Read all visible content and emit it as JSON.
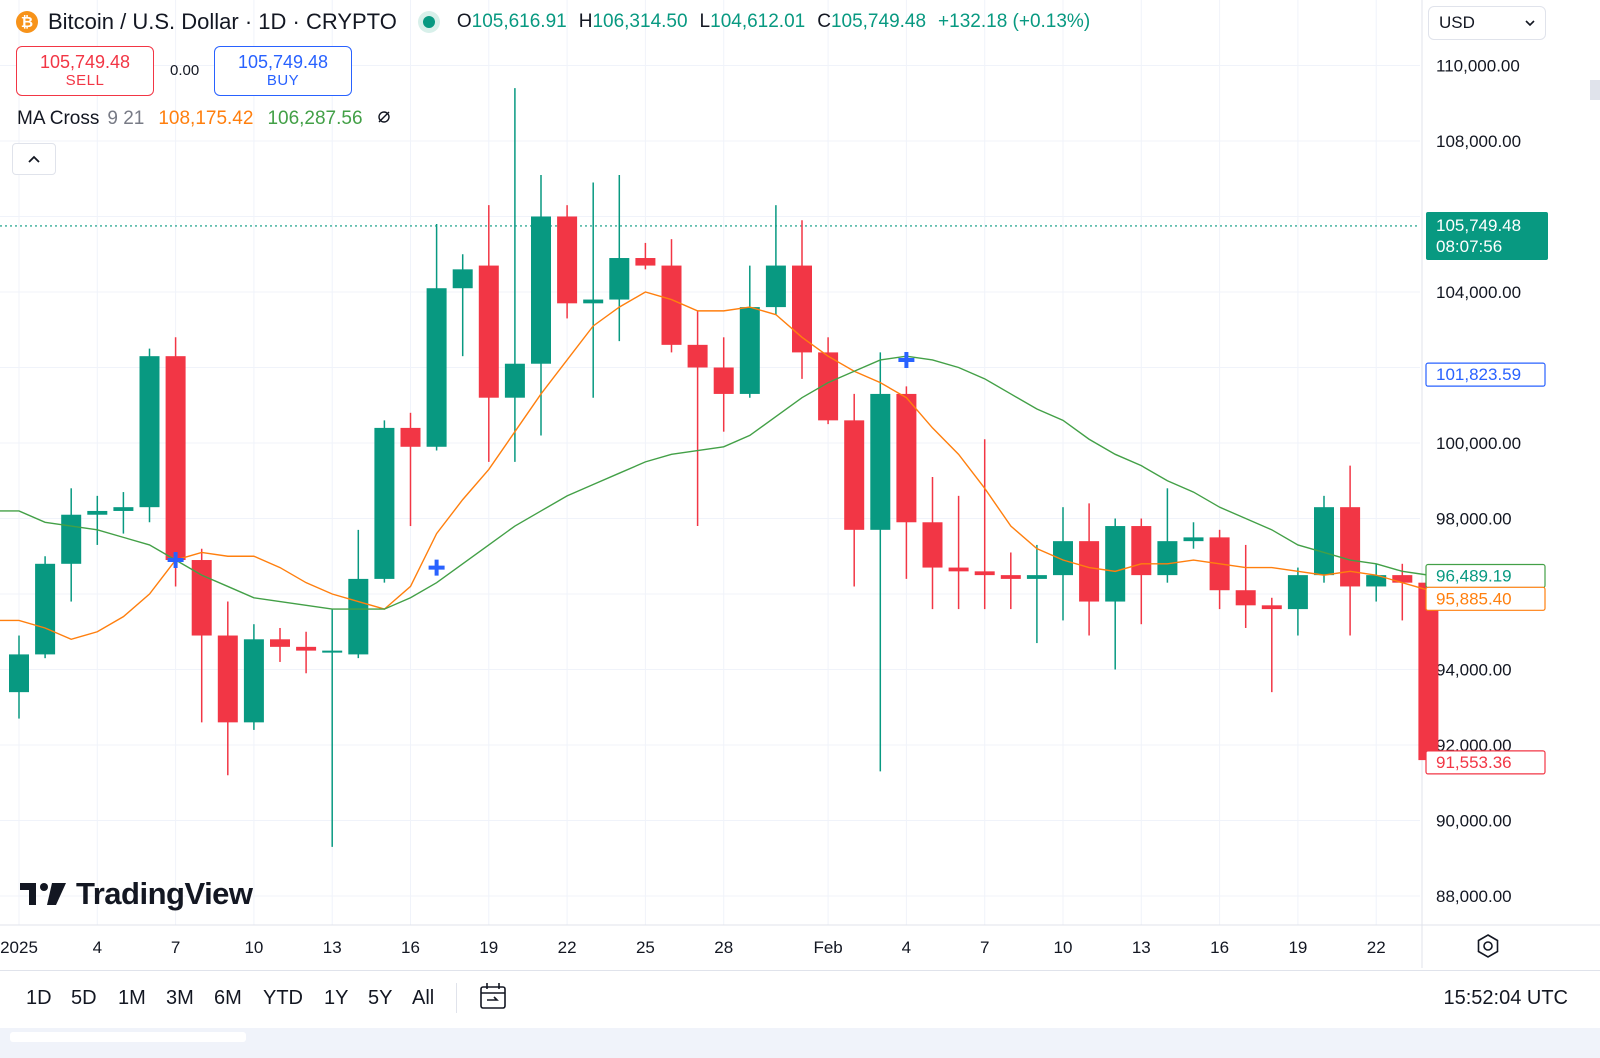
{
  "header": {
    "coin_glyph": "₿",
    "title": "Bitcoin / U.S. Dollar · 1D · CRYPTO",
    "ohlc": {
      "o_label": "O",
      "o": "105,616.91",
      "h_label": "H",
      "h": "106,314.50",
      "l_label": "L",
      "l": "104,612.01",
      "c_label": "C",
      "c": "105,749.48",
      "change": "+132.18 (+0.13%)"
    }
  },
  "trade": {
    "sell_price": "105,749.48",
    "sell_label": "SELL",
    "spread": "0.00",
    "buy_price": "105,749.48",
    "buy_label": "BUY"
  },
  "indicator": {
    "name": "MA Cross",
    "params": "9 21",
    "fast_value": "108,175.42",
    "slow_value": "106,287.56",
    "visibility_icon": "eye-off-icon"
  },
  "currency": {
    "selected": "USD"
  },
  "brand": {
    "name": "TradingView"
  },
  "range_buttons": [
    "1D",
    "5D",
    "1M",
    "3M",
    "6M",
    "YTD",
    "1Y",
    "5Y",
    "All"
  ],
  "clock": "15:52:04 UTC",
  "colors": {
    "up": "#089981",
    "down": "#f23645",
    "ma_fast": "#ff7f0e",
    "ma_slow": "#43a047",
    "cross_marker": "#2962ff",
    "last_price_tag": "#089981"
  },
  "chart_data": {
    "type": "candlestick",
    "title": "Bitcoin / U.S. Dollar · 1D · CRYPTO",
    "ylim": [
      87500,
      111000
    ],
    "y_ticks": [
      {
        "value": 88000,
        "label": "88,000.00"
      },
      {
        "value": 90000,
        "label": "90,000.00"
      },
      {
        "value": 92000,
        "label": "92,000.00"
      },
      {
        "value": 94000,
        "label": "94,000.00"
      },
      {
        "value": 98000,
        "label": "98,000.00"
      },
      {
        "value": 100000,
        "label": "100,000.00"
      },
      {
        "value": 104000,
        "label": "104,000.00"
      },
      {
        "value": 108000,
        "label": "108,000.00"
      },
      {
        "value": 110000,
        "label": "110,000.00"
      }
    ],
    "x_ticks": [
      {
        "index": 0,
        "label": "2025"
      },
      {
        "index": 3,
        "label": "4"
      },
      {
        "index": 6,
        "label": "7"
      },
      {
        "index": 9,
        "label": "10"
      },
      {
        "index": 12,
        "label": "13"
      },
      {
        "index": 15,
        "label": "16"
      },
      {
        "index": 18,
        "label": "19"
      },
      {
        "index": 21,
        "label": "22"
      },
      {
        "index": 24,
        "label": "25"
      },
      {
        "index": 27,
        "label": "28"
      },
      {
        "index": 31,
        "label": "Feb"
      },
      {
        "index": 34,
        "label": "4"
      },
      {
        "index": 37,
        "label": "7"
      },
      {
        "index": 40,
        "label": "10"
      },
      {
        "index": 43,
        "label": "13"
      },
      {
        "index": 46,
        "label": "16"
      },
      {
        "index": 49,
        "label": "19"
      },
      {
        "index": 52,
        "label": "22"
      }
    ],
    "candles": [
      {
        "o": 93400,
        "h": 94900,
        "l": 92700,
        "c": 94400
      },
      {
        "o": 94400,
        "h": 97000,
        "l": 94300,
        "c": 96800
      },
      {
        "o": 96800,
        "h": 98800,
        "l": 95800,
        "c": 98100
      },
      {
        "o": 98100,
        "h": 98600,
        "l": 97300,
        "c": 98200
      },
      {
        "o": 98200,
        "h": 98700,
        "l": 97600,
        "c": 98300
      },
      {
        "o": 98300,
        "h": 102500,
        "l": 97900,
        "c": 102300
      },
      {
        "o": 102300,
        "h": 102800,
        "l": 96200,
        "c": 96900
      },
      {
        "o": 96900,
        "h": 97200,
        "l": 92600,
        "c": 94900
      },
      {
        "o": 94900,
        "h": 95800,
        "l": 91200,
        "c": 92600
      },
      {
        "o": 92600,
        "h": 95200,
        "l": 92400,
        "c": 94800
      },
      {
        "o": 94800,
        "h": 95100,
        "l": 94200,
        "c": 94600
      },
      {
        "o": 94600,
        "h": 95000,
        "l": 93900,
        "c": 94500
      },
      {
        "o": 94500,
        "h": 95600,
        "l": 89300,
        "c": 94500
      },
      {
        "o": 94400,
        "h": 97700,
        "l": 94300,
        "c": 96400
      },
      {
        "o": 96400,
        "h": 100600,
        "l": 96300,
        "c": 100400
      },
      {
        "o": 100400,
        "h": 100800,
        "l": 97800,
        "c": 99900
      },
      {
        "o": 99900,
        "h": 105800,
        "l": 99800,
        "c": 104100
      },
      {
        "o": 104100,
        "h": 105000,
        "l": 102300,
        "c": 104600
      },
      {
        "o": 104700,
        "h": 106300,
        "l": 99500,
        "c": 101200
      },
      {
        "o": 101200,
        "h": 109400,
        "l": 99500,
        "c": 102100
      },
      {
        "o": 102100,
        "h": 107100,
        "l": 100200,
        "c": 106000
      },
      {
        "o": 106000,
        "h": 106300,
        "l": 103300,
        "c": 103700
      },
      {
        "o": 103700,
        "h": 106900,
        "l": 101200,
        "c": 103800
      },
      {
        "o": 103800,
        "h": 107100,
        "l": 102700,
        "c": 104900
      },
      {
        "o": 104900,
        "h": 105300,
        "l": 104600,
        "c": 104700
      },
      {
        "o": 104700,
        "h": 105400,
        "l": 102400,
        "c": 102600
      },
      {
        "o": 102600,
        "h": 103500,
        "l": 97800,
        "c": 102000
      },
      {
        "o": 102000,
        "h": 102800,
        "l": 100300,
        "c": 101300
      },
      {
        "o": 101300,
        "h": 104700,
        "l": 101200,
        "c": 103600
      },
      {
        "o": 103600,
        "h": 106300,
        "l": 103400,
        "c": 104700
      },
      {
        "o": 104700,
        "h": 105900,
        "l": 101700,
        "c": 102400
      },
      {
        "o": 102400,
        "h": 102800,
        "l": 100500,
        "c": 100600
      },
      {
        "o": 100600,
        "h": 101300,
        "l": 96200,
        "c": 97700
      },
      {
        "o": 97700,
        "h": 102400,
        "l": 91300,
        "c": 101300
      },
      {
        "o": 101300,
        "h": 101500,
        "l": 96400,
        "c": 97900
      },
      {
        "o": 97900,
        "h": 99100,
        "l": 95600,
        "c": 96700
      },
      {
        "o": 96700,
        "h": 98600,
        "l": 95600,
        "c": 96600
      },
      {
        "o": 96600,
        "h": 100100,
        "l": 95600,
        "c": 96500
      },
      {
        "o": 96500,
        "h": 97100,
        "l": 95600,
        "c": 96400
      },
      {
        "o": 96400,
        "h": 97300,
        "l": 94700,
        "c": 96500
      },
      {
        "o": 96500,
        "h": 98300,
        "l": 95300,
        "c": 97400
      },
      {
        "o": 97400,
        "h": 98400,
        "l": 94900,
        "c": 95800
      },
      {
        "o": 95800,
        "h": 98000,
        "l": 94000,
        "c": 97800
      },
      {
        "o": 97800,
        "h": 98000,
        "l": 95200,
        "c": 96500
      },
      {
        "o": 96500,
        "h": 98800,
        "l": 96300,
        "c": 97400
      },
      {
        "o": 97400,
        "h": 97900,
        "l": 97200,
        "c": 97500
      },
      {
        "o": 97500,
        "h": 97700,
        "l": 95600,
        "c": 96100
      },
      {
        "o": 96100,
        "h": 97300,
        "l": 95100,
        "c": 95700
      },
      {
        "o": 95700,
        "h": 95900,
        "l": 93400,
        "c": 95600
      },
      {
        "o": 95600,
        "h": 96700,
        "l": 94900,
        "c": 96500
      },
      {
        "o": 96500,
        "h": 98600,
        "l": 96300,
        "c": 98300
      },
      {
        "o": 98300,
        "h": 99400,
        "l": 94900,
        "c": 96200
      },
      {
        "o": 96200,
        "h": 96800,
        "l": 95800,
        "c": 96500
      },
      {
        "o": 96500,
        "h": 96800,
        "l": 95300,
        "c": 96300
      },
      {
        "o": 96300,
        "h": 96500,
        "l": 91500,
        "c": 91600
      }
    ],
    "series": [
      {
        "name": "MA Cross 9",
        "values": [
          95300,
          95100,
          94800,
          95000,
          95400,
          96000,
          96900,
          97100,
          97000,
          97000,
          96700,
          96300,
          96000,
          95800,
          95600,
          96200,
          97600,
          98500,
          99300,
          100300,
          101300,
          102200,
          103100,
          103600,
          104000,
          103800,
          103500,
          103500,
          103600,
          103400,
          102800,
          102300,
          101900,
          101600,
          101200,
          100400,
          99700,
          98800,
          97800,
          97200,
          96900,
          96700,
          96600,
          96800,
          96800,
          96900,
          96800,
          96700,
          96700,
          96600,
          96500,
          96600,
          96500,
          96300,
          96100
        ]
      },
      {
        "name": "MA Cross 21",
        "values": [
          98200,
          97900,
          97800,
          97700,
          97500,
          97300,
          96900,
          96500,
          96200,
          95900,
          95800,
          95700,
          95600,
          95600,
          95600,
          95900,
          96300,
          96800,
          97300,
          97800,
          98200,
          98600,
          98900,
          99200,
          99500,
          99700,
          99800,
          99900,
          100200,
          100700,
          101200,
          101600,
          101900,
          102200,
          102300,
          102200,
          102000,
          101700,
          101300,
          100900,
          100600,
          100100,
          99700,
          99400,
          99000,
          98700,
          98300,
          98000,
          97700,
          97300,
          97100,
          96900,
          96800,
          96600,
          96500
        ]
      }
    ],
    "cross_markers": [
      {
        "index": 6,
        "value": 96900
      },
      {
        "index": 16,
        "value": 96700
      },
      {
        "index": 34,
        "value": 102200
      }
    ],
    "price_tags": [
      {
        "label": "105,749.48",
        "sublabel": "08:07:56",
        "value": 105749.48,
        "style": "last-price"
      },
      {
        "label": "101,823.59",
        "value": 101823.59,
        "style": "crosshair"
      },
      {
        "label": "96,489.19",
        "value": 96489.19,
        "style": "ma-slow"
      },
      {
        "label": "95,885.40",
        "value": 95885.4,
        "style": "ma-fast"
      },
      {
        "label": "91,553.36",
        "value": 91553.36,
        "style": "last-candle"
      }
    ],
    "last_price_line": 105749.48,
    "grid": true,
    "legend": "top-left"
  }
}
